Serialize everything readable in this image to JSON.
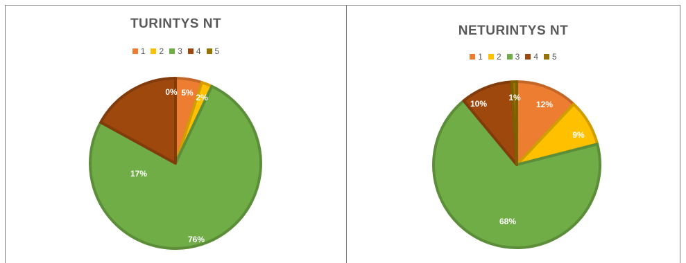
{
  "chart_data": [
    {
      "type": "pie",
      "title": "TURINTYS NT",
      "categories": [
        "1",
        "2",
        "3",
        "4",
        "5"
      ],
      "values": [
        5,
        2,
        76,
        17,
        0
      ],
      "data_labels": [
        "5%",
        "2%",
        "76%",
        "17%",
        "0%"
      ],
      "legend_position": "top",
      "colors": [
        "#ED7D31",
        "#FFC000",
        "#70AD47",
        "#9E480E",
        "#997300"
      ]
    },
    {
      "type": "pie",
      "title": "NETURINTYS NT",
      "categories": [
        "1",
        "2",
        "3",
        "4",
        "5"
      ],
      "values": [
        12,
        9,
        68,
        10,
        1
      ],
      "data_labels": [
        "12%",
        "9%",
        "68%",
        "10%",
        "1%"
      ],
      "legend_position": "top",
      "colors": [
        "#ED7D31",
        "#FFC000",
        "#70AD47",
        "#9E480E",
        "#997300"
      ]
    }
  ]
}
